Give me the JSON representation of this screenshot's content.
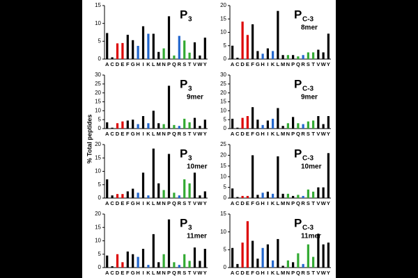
{
  "y_label": "% Total peptides",
  "chart_data": [
    {
      "type": "bar",
      "title": "P",
      "title_subscript": "3",
      "categories": [
        "A",
        "C",
        "D",
        "E",
        "F",
        "G",
        "H",
        "I",
        "K",
        "L",
        "M",
        "N",
        "P",
        "Q",
        "R",
        "S",
        "T",
        "V",
        "W",
        "Y"
      ],
      "values": [
        7.3,
        0.5,
        4.4,
        4.5,
        6.8,
        5.3,
        3.7,
        9.2,
        7.1,
        7.1,
        2.0,
        3.0,
        12.0,
        1.0,
        6.5,
        5.2,
        1.8,
        4.7,
        1.0,
        6.0
      ],
      "colors": [
        "#000",
        "#000",
        "#d00",
        "#d00",
        "#000",
        "#000",
        "#26c",
        "#000",
        "#26c",
        "#000",
        "#000",
        "#3a3",
        "#000",
        "#3a3",
        "#26c",
        "#3a3",
        "#3a3",
        "#000",
        "#000",
        "#000"
      ],
      "ylim": [
        0,
        15
      ],
      "yticks": [
        0,
        5,
        10,
        15
      ]
    },
    {
      "type": "bar",
      "title": "P",
      "title_subscript": "C-3",
      "subtitle": "8mer",
      "categories": [
        "A",
        "C",
        "D",
        "E",
        "F",
        "G",
        "H",
        "I",
        "K",
        "L",
        "M",
        "N",
        "P",
        "Q",
        "R",
        "S",
        "T",
        "V",
        "W",
        "Y"
      ],
      "values": [
        5,
        0.5,
        14,
        9,
        13,
        3,
        2,
        4,
        3,
        18,
        1.5,
        1.5,
        1.5,
        1,
        1.5,
        2.5,
        2.5,
        3.5,
        2.5,
        9.5
      ],
      "colors": [
        "#000",
        "#000",
        "#d00",
        "#d00",
        "#000",
        "#000",
        "#26c",
        "#000",
        "#26c",
        "#000",
        "#000",
        "#3a3",
        "#000",
        "#3a3",
        "#26c",
        "#3a3",
        "#3a3",
        "#000",
        "#000",
        "#000"
      ],
      "ylim": [
        0,
        20
      ],
      "yticks": [
        0,
        5,
        10,
        15,
        20
      ]
    },
    {
      "type": "bar",
      "title": "P",
      "title_subscript": "3",
      "subtitle": "9mer",
      "categories": [
        "A",
        "C",
        "D",
        "E",
        "F",
        "G",
        "H",
        "I",
        "K",
        "L",
        "M",
        "N",
        "P",
        "Q",
        "R",
        "S",
        "T",
        "V",
        "W",
        "Y"
      ],
      "values": [
        3.5,
        0.5,
        3,
        4,
        4.5,
        5,
        2.5,
        7,
        3,
        10,
        3,
        2.5,
        24,
        2,
        1.5,
        5.5,
        3.5,
        6,
        1.5,
        5
      ],
      "colors": [
        "#000",
        "#000",
        "#d00",
        "#d00",
        "#000",
        "#000",
        "#26c",
        "#000",
        "#26c",
        "#000",
        "#000",
        "#3a3",
        "#000",
        "#3a3",
        "#26c",
        "#3a3",
        "#3a3",
        "#000",
        "#000",
        "#000"
      ],
      "ylim": [
        0,
        30
      ],
      "yticks": [
        0,
        5,
        10,
        15,
        20,
        25,
        30
      ]
    },
    {
      "type": "bar",
      "title": "P",
      "title_subscript": "C-3",
      "subtitle": "9mer",
      "categories": [
        "A",
        "C",
        "D",
        "E",
        "F",
        "G",
        "H",
        "I",
        "K",
        "L",
        "M",
        "N",
        "P",
        "Q",
        "R",
        "S",
        "T",
        "V",
        "W",
        "Y"
      ],
      "values": [
        5.5,
        0.5,
        6,
        7,
        12,
        5,
        2,
        4.5,
        5.5,
        11.5,
        1.5,
        3,
        6.5,
        3,
        2.5,
        4,
        4.5,
        7,
        2.5,
        7
      ],
      "colors": [
        "#000",
        "#000",
        "#d00",
        "#d00",
        "#000",
        "#000",
        "#26c",
        "#000",
        "#26c",
        "#000",
        "#000",
        "#3a3",
        "#000",
        "#3a3",
        "#26c",
        "#3a3",
        "#3a3",
        "#000",
        "#000",
        "#000"
      ],
      "ylim": [
        0,
        30
      ],
      "yticks": [
        0,
        5,
        10,
        15,
        20,
        25,
        30
      ]
    },
    {
      "type": "bar",
      "title": "P",
      "title_subscript": "3",
      "subtitle": "10mer",
      "categories": [
        "A",
        "C",
        "D",
        "E",
        "F",
        "G",
        "H",
        "I",
        "K",
        "L",
        "M",
        "N",
        "P",
        "Q",
        "R",
        "S",
        "T",
        "V",
        "W",
        "Y"
      ],
      "values": [
        7,
        1,
        1.5,
        1.5,
        2.5,
        3.5,
        2,
        9.5,
        1,
        18.5,
        5.5,
        3,
        16.5,
        2,
        1,
        7,
        5.5,
        9.5,
        1,
        2.5
      ],
      "colors": [
        "#000",
        "#000",
        "#d00",
        "#d00",
        "#000",
        "#000",
        "#26c",
        "#000",
        "#26c",
        "#000",
        "#000",
        "#3a3",
        "#000",
        "#3a3",
        "#26c",
        "#3a3",
        "#3a3",
        "#000",
        "#000",
        "#000"
      ],
      "ylim": [
        0,
        20
      ],
      "yticks": [
        0,
        5,
        10,
        15,
        20
      ]
    },
    {
      "type": "bar",
      "title": "P",
      "title_subscript": "C-3",
      "subtitle": "10mer",
      "categories": [
        "A",
        "C",
        "D",
        "E",
        "F",
        "G",
        "H",
        "I",
        "K",
        "L",
        "M",
        "N",
        "P",
        "Q",
        "R",
        "S",
        "T",
        "V",
        "W",
        "Y"
      ],
      "values": [
        4.5,
        0.5,
        1,
        1,
        20,
        1.5,
        2.5,
        3,
        2,
        19.5,
        2,
        2,
        1,
        1.5,
        1,
        4,
        3,
        5,
        5,
        21
      ],
      "colors": [
        "#000",
        "#000",
        "#d00",
        "#d00",
        "#000",
        "#000",
        "#26c",
        "#000",
        "#26c",
        "#000",
        "#000",
        "#3a3",
        "#000",
        "#3a3",
        "#26c",
        "#3a3",
        "#3a3",
        "#000",
        "#000",
        "#000"
      ],
      "ylim": [
        0,
        25
      ],
      "yticks": [
        0,
        5,
        10,
        15,
        20,
        25
      ]
    },
    {
      "type": "bar",
      "title": "P",
      "title_subscript": "3",
      "subtitle": "11mer",
      "categories": [
        "A",
        "C",
        "D",
        "E",
        "F",
        "G",
        "H",
        "I",
        "K",
        "L",
        "M",
        "N",
        "P",
        "Q",
        "R",
        "S",
        "T",
        "V",
        "W",
        "Y"
      ],
      "values": [
        4.5,
        0.5,
        5,
        2,
        6,
        5,
        4,
        7,
        1,
        12.5,
        2,
        5,
        18,
        2,
        1,
        5,
        2.5,
        7.5,
        2.5,
        7
      ],
      "colors": [
        "#000",
        "#000",
        "#d00",
        "#d00",
        "#000",
        "#000",
        "#26c",
        "#000",
        "#26c",
        "#000",
        "#000",
        "#3a3",
        "#000",
        "#3a3",
        "#26c",
        "#3a3",
        "#3a3",
        "#000",
        "#000",
        "#000"
      ],
      "ylim": [
        0,
        20
      ],
      "yticks": [
        0,
        5,
        10,
        15,
        20
      ]
    },
    {
      "type": "bar",
      "title": "P",
      "title_subscript": "C-3",
      "subtitle": "11mer",
      "categories": [
        "A",
        "C",
        "D",
        "E",
        "F",
        "G",
        "H",
        "I",
        "K",
        "L",
        "M",
        "N",
        "P",
        "Q",
        "R",
        "S",
        "T",
        "V",
        "W",
        "Y"
      ],
      "values": [
        5.5,
        1,
        7,
        13,
        7.5,
        2.5,
        5.5,
        6.5,
        2,
        8,
        0.5,
        2,
        1.5,
        4,
        1,
        6.5,
        3,
        9.5,
        6.5,
        7
      ],
      "colors": [
        "#000",
        "#000",
        "#d00",
        "#d00",
        "#000",
        "#000",
        "#26c",
        "#000",
        "#26c",
        "#000",
        "#000",
        "#3a3",
        "#000",
        "#3a3",
        "#26c",
        "#3a3",
        "#3a3",
        "#000",
        "#000",
        "#000"
      ],
      "ylim": [
        0,
        15
      ],
      "yticks": [
        0,
        5,
        10,
        15
      ]
    }
  ]
}
